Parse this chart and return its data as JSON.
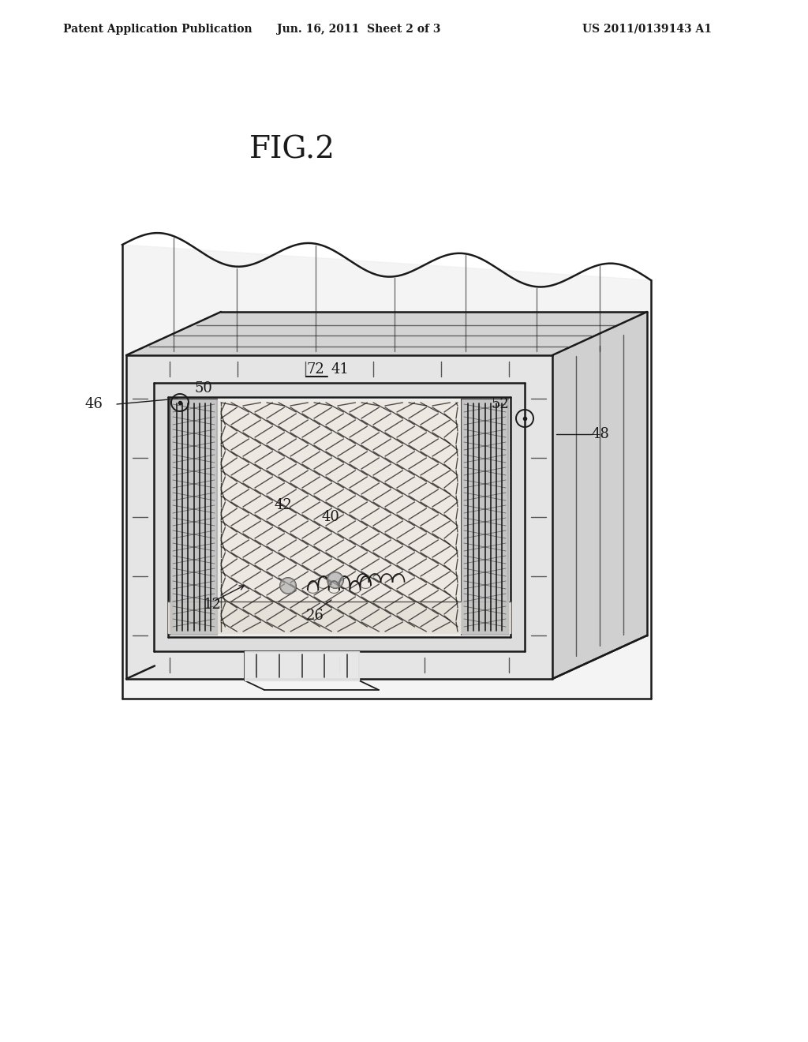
{
  "bg_color": "#ffffff",
  "line_color": "#1a1a1a",
  "header_left": "Patent Application Publication",
  "header_mid": "Jun. 16, 2011  Sheet 2 of 3",
  "header_right": "US 2011/0139143 A1",
  "fig_label": "FIG.2",
  "gray_light": "#d8d8d8",
  "gray_med": "#b8b8b8",
  "gray_dark": "#888888"
}
